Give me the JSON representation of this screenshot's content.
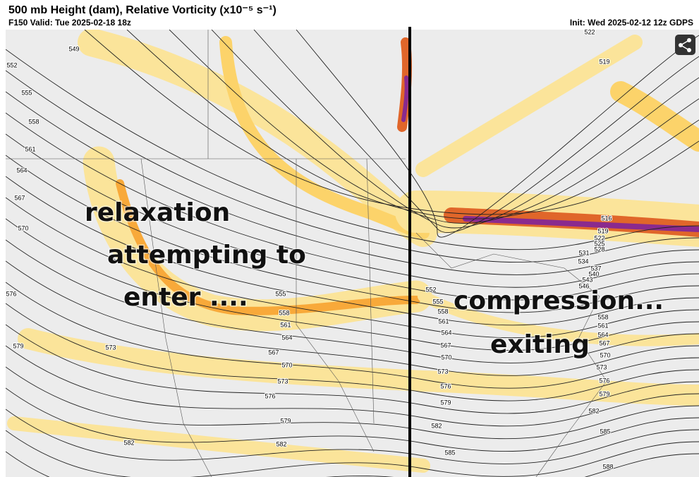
{
  "header": {
    "title": "500 mb Height (dam), Relative Vorticity (x10⁻⁵ s⁻¹)",
    "valid": "F150 Valid: Tue 2025-02-18 18z",
    "init": "Init: Wed 2025-02-12 12z GDPS"
  },
  "annotations": [
    "relaxation",
    "attempting to",
    "enter ....",
    "compression...",
    "exiting"
  ],
  "contour_labels": [
    "549",
    "552",
    "555",
    "558",
    "561",
    "564",
    "567",
    "570",
    "576",
    "579",
    "573",
    "555",
    "558",
    "561",
    "564",
    "567",
    "570",
    "573",
    "576",
    "579",
    "582",
    "582",
    "522",
    "519",
    "516",
    "519",
    "522",
    "525",
    "528",
    "531",
    "534",
    "537",
    "540",
    "543",
    "546",
    "552",
    "555",
    "558",
    "561",
    "564",
    "567",
    "570",
    "573",
    "576",
    "579",
    "582",
    "585",
    "588",
    "585",
    "582",
    "579",
    "576",
    "573",
    "570",
    "567",
    "564",
    "561",
    "558"
  ]
}
